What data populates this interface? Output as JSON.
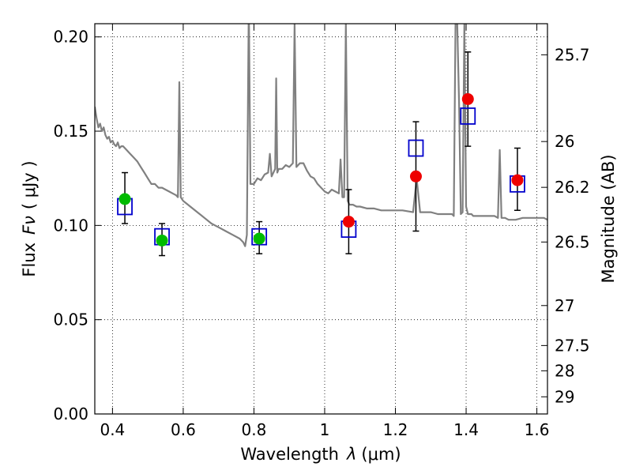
{
  "chart_data": {
    "type": "scatter",
    "title": "",
    "xlabel": "Wavelength",
    "xlabel_symbol": "λ",
    "xlabel_unit": "(μm)",
    "ylabel": "Flux",
    "ylabel_symbol": "Fν",
    "ylabel_unit": "( μJy )",
    "y2label": "Magnitude (AB)",
    "xlim": [
      0.35,
      1.63
    ],
    "ylim": [
      0.0,
      0.207
    ],
    "xticks": [
      0.4,
      0.6,
      0.8,
      1.0,
      1.2,
      1.4,
      1.6
    ],
    "xtick_labels": [
      "0.4",
      "0.6",
      "0.8",
      "1",
      "1.2",
      "1.4",
      "1.6"
    ],
    "yticks": [
      0.0,
      0.05,
      0.1,
      0.15,
      0.2
    ],
    "ytick_labels": [
      "0.00",
      "0.05",
      "0.10",
      "0.15",
      "0.20"
    ],
    "grid": true,
    "mag_ticks": [
      {
        "label": "25.7",
        "flux": 0.1905
      },
      {
        "label": "26",
        "flux": 0.1445
      },
      {
        "label": "26.2",
        "flux": 0.1202
      },
      {
        "label": "26.5",
        "flux": 0.0912
      },
      {
        "label": "27",
        "flux": 0.0575
      },
      {
        "label": "27.5",
        "flux": 0.0363
      },
      {
        "label": "28",
        "flux": 0.0229
      },
      {
        "label": "29",
        "flux": 0.0091
      }
    ],
    "series": [
      {
        "name": "Model spectrum",
        "kind": "line",
        "color": "#808080",
        "x": [
          0.35,
          0.355,
          0.36,
          0.365,
          0.37,
          0.375,
          0.38,
          0.385,
          0.39,
          0.395,
          0.4,
          0.405,
          0.41,
          0.415,
          0.42,
          0.425,
          0.43,
          0.44,
          0.45,
          0.46,
          0.47,
          0.48,
          0.49,
          0.5,
          0.51,
          0.52,
          0.53,
          0.54,
          0.55,
          0.56,
          0.57,
          0.58,
          0.585,
          0.589,
          0.593,
          0.6,
          0.62,
          0.64,
          0.66,
          0.68,
          0.7,
          0.72,
          0.74,
          0.76,
          0.77,
          0.775,
          0.78,
          0.785,
          0.786,
          0.79,
          0.8,
          0.81,
          0.82,
          0.83,
          0.84,
          0.845,
          0.85,
          0.86,
          0.863,
          0.866,
          0.87,
          0.88,
          0.89,
          0.9,
          0.91,
          0.915,
          0.92,
          0.93,
          0.94,
          0.95,
          0.96,
          0.97,
          0.98,
          0.99,
          1.0,
          1.01,
          1.02,
          1.03,
          1.04,
          1.045,
          1.05,
          1.055,
          1.06,
          1.065,
          1.07,
          1.08,
          1.09,
          1.1,
          1.12,
          1.14,
          1.16,
          1.18,
          1.2,
          1.22,
          1.25,
          1.26,
          1.27,
          1.28,
          1.3,
          1.32,
          1.34,
          1.36,
          1.365,
          1.37,
          1.375,
          1.38,
          1.385,
          1.39,
          1.395,
          1.4,
          1.405,
          1.41,
          1.415,
          1.42,
          1.44,
          1.46,
          1.48,
          1.49,
          1.495,
          1.5,
          1.51,
          1.52,
          1.54,
          1.56,
          1.58,
          1.6,
          1.62,
          1.63
        ],
        "y": [
          0.163,
          0.157,
          0.152,
          0.154,
          0.15,
          0.152,
          0.148,
          0.146,
          0.147,
          0.144,
          0.145,
          0.143,
          0.142,
          0.144,
          0.141,
          0.142,
          0.142,
          0.14,
          0.138,
          0.136,
          0.134,
          0.131,
          0.128,
          0.125,
          0.122,
          0.122,
          0.12,
          0.12,
          0.119,
          0.118,
          0.117,
          0.116,
          0.115,
          0.176,
          0.115,
          0.113,
          0.11,
          0.107,
          0.104,
          0.101,
          0.099,
          0.097,
          0.095,
          0.093,
          0.091,
          0.089,
          0.095,
          0.207,
          0.207,
          0.122,
          0.122,
          0.125,
          0.124,
          0.127,
          0.128,
          0.138,
          0.126,
          0.13,
          0.178,
          0.128,
          0.13,
          0.13,
          0.132,
          0.131,
          0.133,
          0.207,
          0.131,
          0.133,
          0.133,
          0.129,
          0.126,
          0.125,
          0.122,
          0.12,
          0.118,
          0.117,
          0.119,
          0.118,
          0.117,
          0.135,
          0.115,
          0.115,
          0.207,
          0.113,
          0.111,
          0.111,
          0.11,
          0.11,
          0.109,
          0.109,
          0.108,
          0.108,
          0.108,
          0.108,
          0.107,
          0.125,
          0.107,
          0.107,
          0.107,
          0.106,
          0.106,
          0.106,
          0.105,
          0.207,
          0.207,
          0.165,
          0.106,
          0.107,
          0.207,
          0.11,
          0.106,
          0.106,
          0.106,
          0.105,
          0.105,
          0.105,
          0.105,
          0.104,
          0.14,
          0.104,
          0.104,
          0.103,
          0.103,
          0.104,
          0.104,
          0.104,
          0.104,
          0.103
        ]
      },
      {
        "name": "Blue squares",
        "kind": "marker",
        "marker": "square",
        "color": "#0000cc",
        "x": [
          0.435,
          0.54,
          0.815,
          1.068,
          1.258,
          1.405,
          1.545
        ],
        "values": [
          0.11,
          0.094,
          0.094,
          0.098,
          0.141,
          0.158,
          0.122
        ]
      },
      {
        "name": "Green points",
        "kind": "marker",
        "marker": "circle",
        "color": "#00bb00",
        "x": [
          0.435,
          0.54,
          0.815
        ],
        "values": [
          0.114,
          0.092,
          0.093
        ]
      },
      {
        "name": "Red points",
        "kind": "marker",
        "marker": "circle",
        "color": "#ee0000",
        "x": [
          1.068,
          1.258,
          1.405,
          1.545
        ],
        "values": [
          0.102,
          0.126,
          0.167,
          0.124
        ]
      }
    ],
    "errorbars": [
      {
        "x": 0.435,
        "y": 0.114,
        "low": 0.101,
        "high": 0.128
      },
      {
        "x": 0.54,
        "y": 0.093,
        "low": 0.084,
        "high": 0.101
      },
      {
        "x": 0.815,
        "y": 0.094,
        "low": 0.085,
        "high": 0.102
      },
      {
        "x": 1.068,
        "y": 0.102,
        "low": 0.085,
        "high": 0.119
      },
      {
        "x": 1.258,
        "y": 0.126,
        "low": 0.097,
        "high": 0.155
      },
      {
        "x": 1.405,
        "y": 0.167,
        "low": 0.142,
        "high": 0.192
      },
      {
        "x": 1.545,
        "y": 0.124,
        "low": 0.108,
        "high": 0.141
      }
    ]
  }
}
